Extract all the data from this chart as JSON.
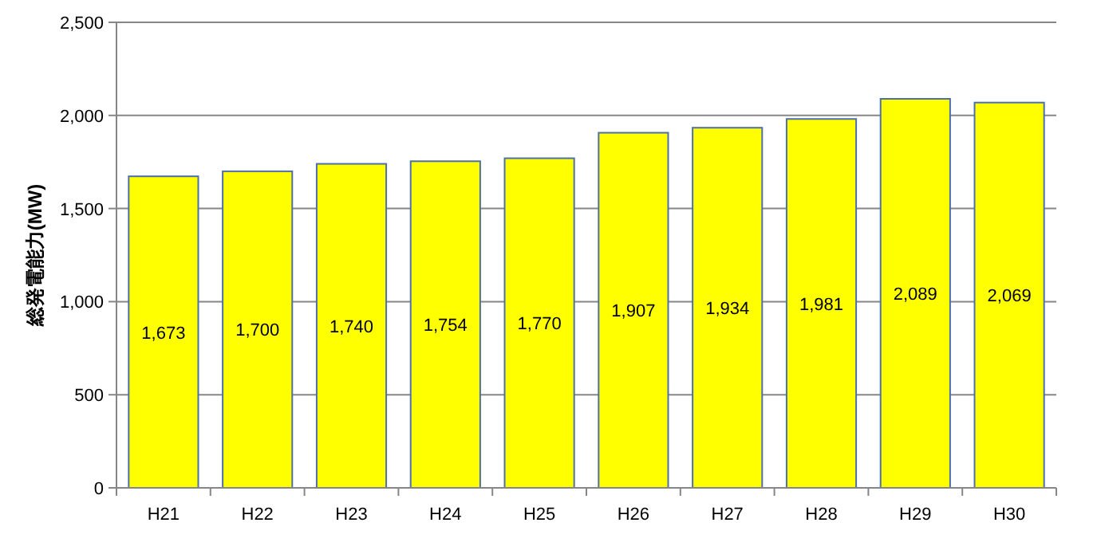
{
  "chart_data": {
    "type": "bar",
    "ylabel": "総発電能力(MW)",
    "categories": [
      "H21",
      "H22",
      "H23",
      "H24",
      "H25",
      "H26",
      "H27",
      "H28",
      "H29",
      "H30"
    ],
    "values": [
      1673,
      1700,
      1740,
      1754,
      1770,
      1907,
      1934,
      1981,
      2089,
      2069
    ],
    "value_labels": [
      "1,673",
      "1,700",
      "1,740",
      "1,754",
      "1,770",
      "1,907",
      "1,934",
      "1,981",
      "2,089",
      "2,069"
    ],
    "color": "#ffff00",
    "ylim": [
      0,
      2500
    ],
    "yticks": [
      {
        "value": 0,
        "label": "0"
      },
      {
        "value": 500,
        "label": "500"
      },
      {
        "value": 1000,
        "label": "1,000"
      },
      {
        "value": 1500,
        "label": "1,500"
      },
      {
        "value": 2000,
        "label": "2,000"
      },
      {
        "value": 2500,
        "label": "2,500"
      }
    ],
    "grid": "y"
  }
}
